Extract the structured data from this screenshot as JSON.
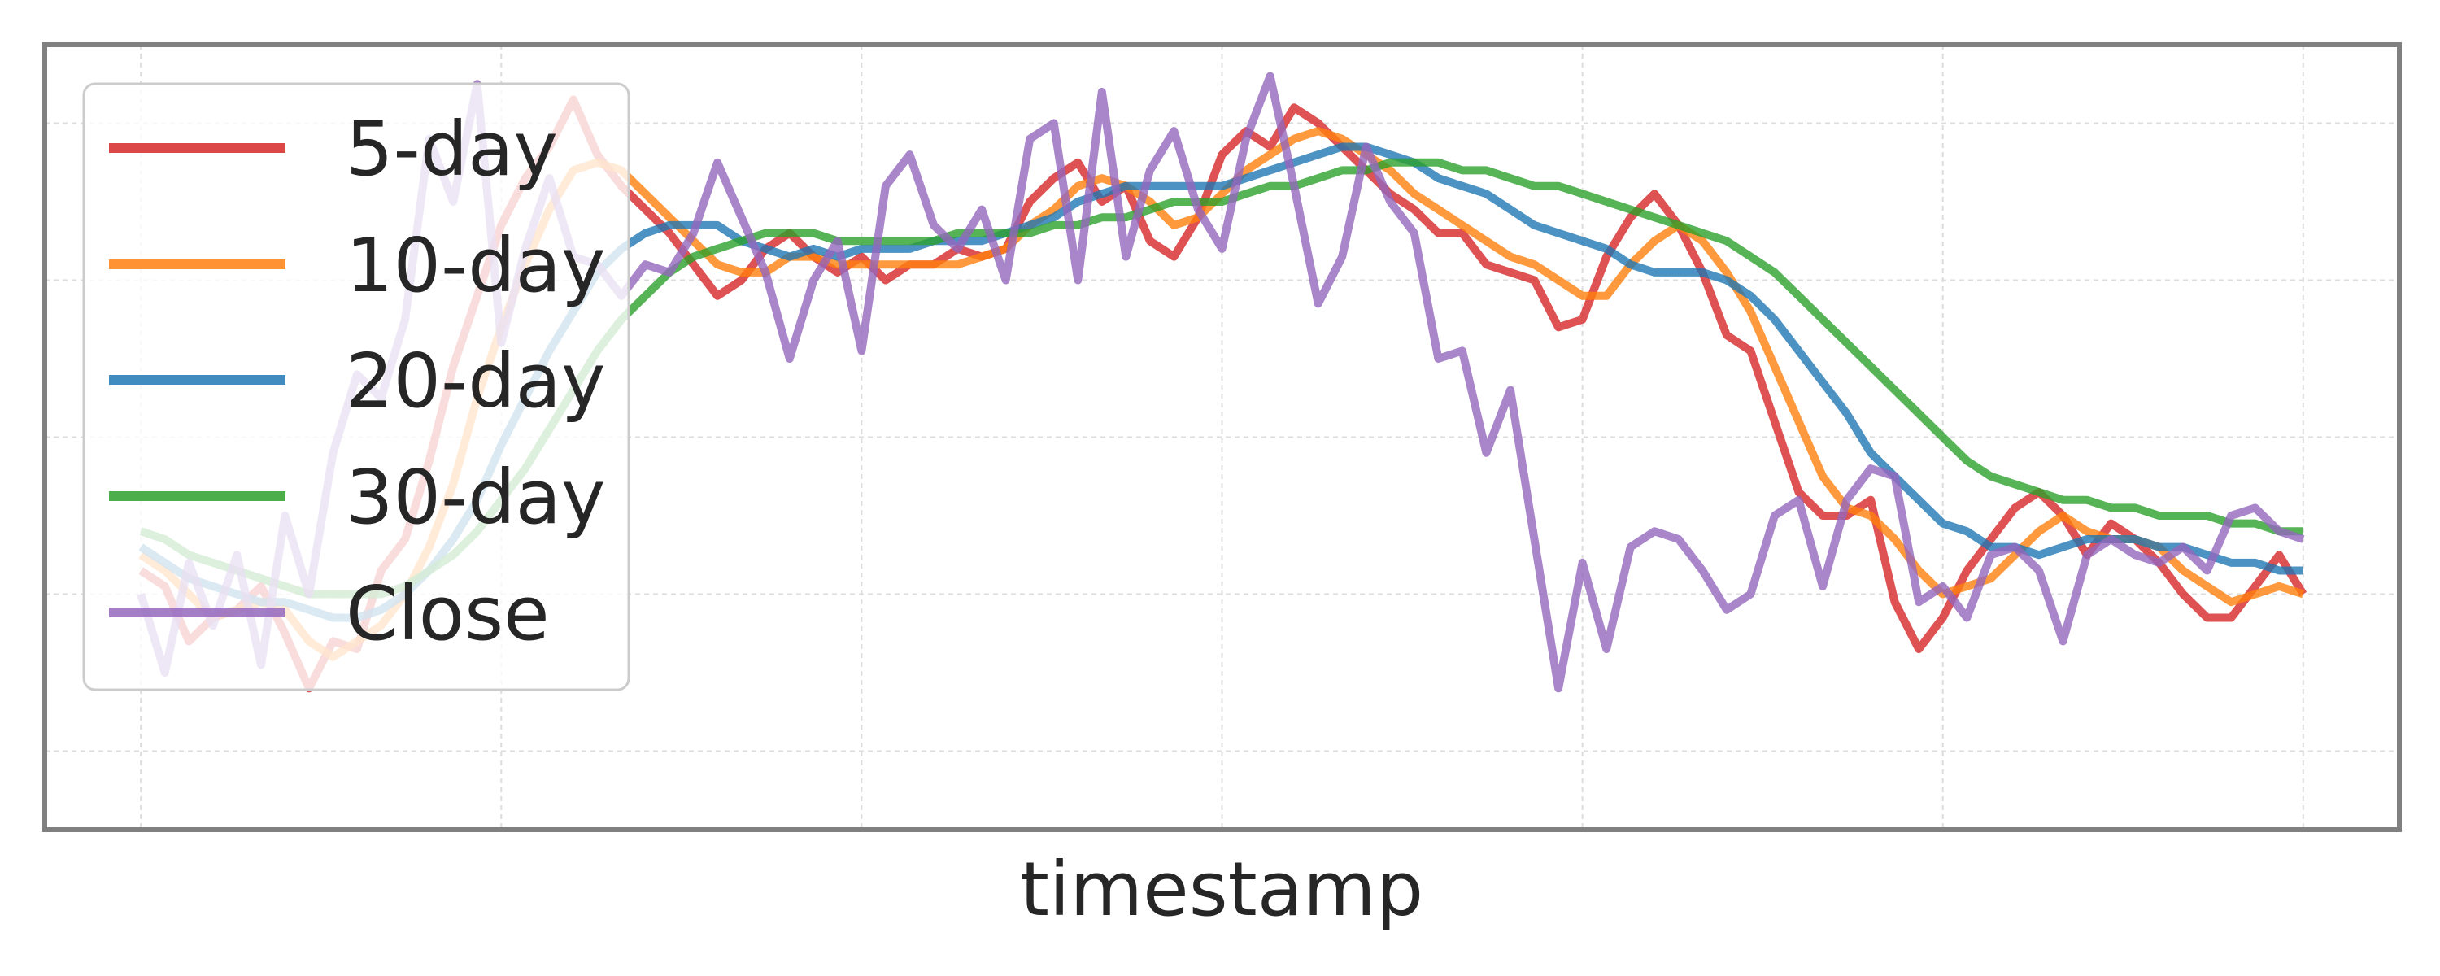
{
  "chart_data": {
    "type": "line",
    "title": "",
    "xlabel": "timestamp",
    "ylabel": "",
    "x_ticks_shown": false,
    "y_ticks_shown": false,
    "x": [
      0,
      2,
      4,
      6,
      8,
      10,
      12,
      14,
      16,
      18,
      20,
      22,
      24,
      26,
      28,
      30,
      32,
      34,
      36,
      38,
      40,
      42,
      44,
      46,
      48,
      50,
      52,
      54,
      56,
      58,
      60,
      62,
      64,
      66,
      68,
      70,
      72,
      74,
      76,
      78,
      80,
      82,
      84,
      86,
      88,
      90,
      92,
      94,
      96,
      98,
      100,
      102,
      104,
      106,
      108,
      110,
      112,
      114,
      116,
      118,
      120,
      122,
      124,
      126,
      128,
      130,
      132,
      134,
      136,
      138,
      140,
      142,
      144,
      146,
      148,
      150,
      152,
      154,
      156,
      158,
      160,
      162,
      164,
      166,
      168,
      170,
      172,
      174,
      176,
      178,
      180
    ],
    "xlim": [
      -8,
      188
    ],
    "ylim": [
      0,
      100
    ],
    "grid": true,
    "legend_position": "top-left",
    "series": [
      {
        "name": "5-day",
        "color": "#d62728",
        "values": [
          33,
          31,
          24,
          27,
          28,
          31,
          25,
          18,
          24,
          23,
          33,
          37,
          47,
          59,
          68,
          77,
          83,
          87,
          93,
          86,
          82,
          79,
          76,
          72,
          68,
          70,
          74,
          76,
          73,
          71,
          73,
          70,
          72,
          72,
          74,
          73,
          74,
          80,
          83,
          85,
          80,
          82,
          75,
          73,
          78,
          86,
          89,
          87,
          92,
          90,
          87,
          84,
          81,
          79,
          76,
          76,
          72,
          71,
          70,
          64,
          65,
          73,
          78,
          81,
          77,
          71,
          63,
          61,
          52,
          43,
          40,
          40,
          42,
          29,
          23,
          27,
          33,
          37,
          41,
          43,
          40,
          35,
          39,
          37,
          34,
          30,
          27,
          27,
          31,
          35,
          30
        ]
      },
      {
        "name": "10-day",
        "color": "#ff7f0e",
        "values": [
          35,
          33,
          30,
          27,
          28,
          29,
          28,
          24,
          22,
          24,
          26,
          30,
          36,
          44,
          55,
          64,
          72,
          79,
          84,
          85,
          84,
          81,
          78,
          75,
          72,
          71,
          71,
          73,
          73,
          72,
          72,
          72,
          72,
          72,
          72,
          73,
          74,
          77,
          79,
          82,
          83,
          82,
          80,
          77,
          78,
          81,
          84,
          86,
          88,
          89,
          88,
          86,
          84,
          81,
          79,
          77,
          75,
          73,
          72,
          70,
          68,
          68,
          72,
          75,
          77,
          75,
          71,
          66,
          59,
          52,
          45,
          41,
          40,
          37,
          33,
          30,
          31,
          32,
          35,
          38,
          40,
          38,
          37,
          37,
          36,
          33,
          31,
          29,
          30,
          31,
          30
        ]
      },
      {
        "name": "20-day",
        "color": "#1f77b4",
        "values": [
          36,
          34,
          32,
          31,
          30,
          29,
          29,
          28,
          27,
          27,
          28,
          30,
          33,
          37,
          42,
          49,
          55,
          61,
          66,
          71,
          74,
          76,
          77,
          77,
          77,
          75,
          74,
          73,
          74,
          73,
          74,
          74,
          74,
          75,
          75,
          75,
          76,
          77,
          78,
          80,
          81,
          82,
          82,
          82,
          82,
          82,
          83,
          84,
          85,
          86,
          87,
          87,
          86,
          85,
          83,
          82,
          81,
          79,
          77,
          76,
          75,
          74,
          72,
          71,
          71,
          71,
          70,
          68,
          65,
          61,
          57,
          53,
          48,
          45,
          42,
          39,
          38,
          36,
          36,
          35,
          36,
          37,
          37,
          37,
          36,
          36,
          35,
          34,
          34,
          33,
          33
        ]
      },
      {
        "name": "30-day",
        "color": "#2ca02c",
        "values": [
          38,
          37,
          35,
          34,
          33,
          32,
          31,
          30,
          30,
          30,
          30,
          31,
          33,
          35,
          38,
          42,
          46,
          51,
          56,
          61,
          65,
          68,
          71,
          73,
          74,
          75,
          76,
          76,
          76,
          75,
          75,
          75,
          75,
          75,
          76,
          76,
          76,
          76,
          77,
          77,
          78,
          78,
          79,
          80,
          80,
          80,
          81,
          82,
          82,
          83,
          84,
          84,
          85,
          85,
          85,
          84,
          84,
          83,
          82,
          82,
          81,
          80,
          79,
          78,
          77,
          76,
          75,
          73,
          71,
          68,
          65,
          62,
          59,
          56,
          53,
          50,
          47,
          45,
          44,
          43,
          42,
          42,
          41,
          41,
          40,
          40,
          40,
          39,
          39,
          38,
          38
        ]
      },
      {
        "name": "Close",
        "color": "#9467bd",
        "values": [
          30,
          20,
          34,
          26,
          35,
          21,
          40,
          30,
          48,
          58,
          55,
          65,
          88,
          80,
          95,
          62,
          74,
          83,
          73,
          72,
          68,
          72,
          71,
          76,
          85,
          78,
          71,
          60,
          70,
          75,
          61,
          82,
          86,
          77,
          74,
          79,
          70,
          88,
          90,
          70,
          94,
          73,
          84,
          89,
          79,
          74,
          88,
          96,
          82,
          67,
          73,
          87,
          80,
          76,
          60,
          61,
          48,
          56,
          37,
          18,
          34,
          23,
          36,
          38,
          37,
          33,
          28,
          30,
          40,
          42,
          31,
          42,
          46,
          45,
          29,
          31,
          27,
          35,
          36,
          33,
          24,
          35,
          37,
          35,
          34,
          36,
          33,
          40,
          41,
          38,
          37
        ]
      }
    ]
  }
}
